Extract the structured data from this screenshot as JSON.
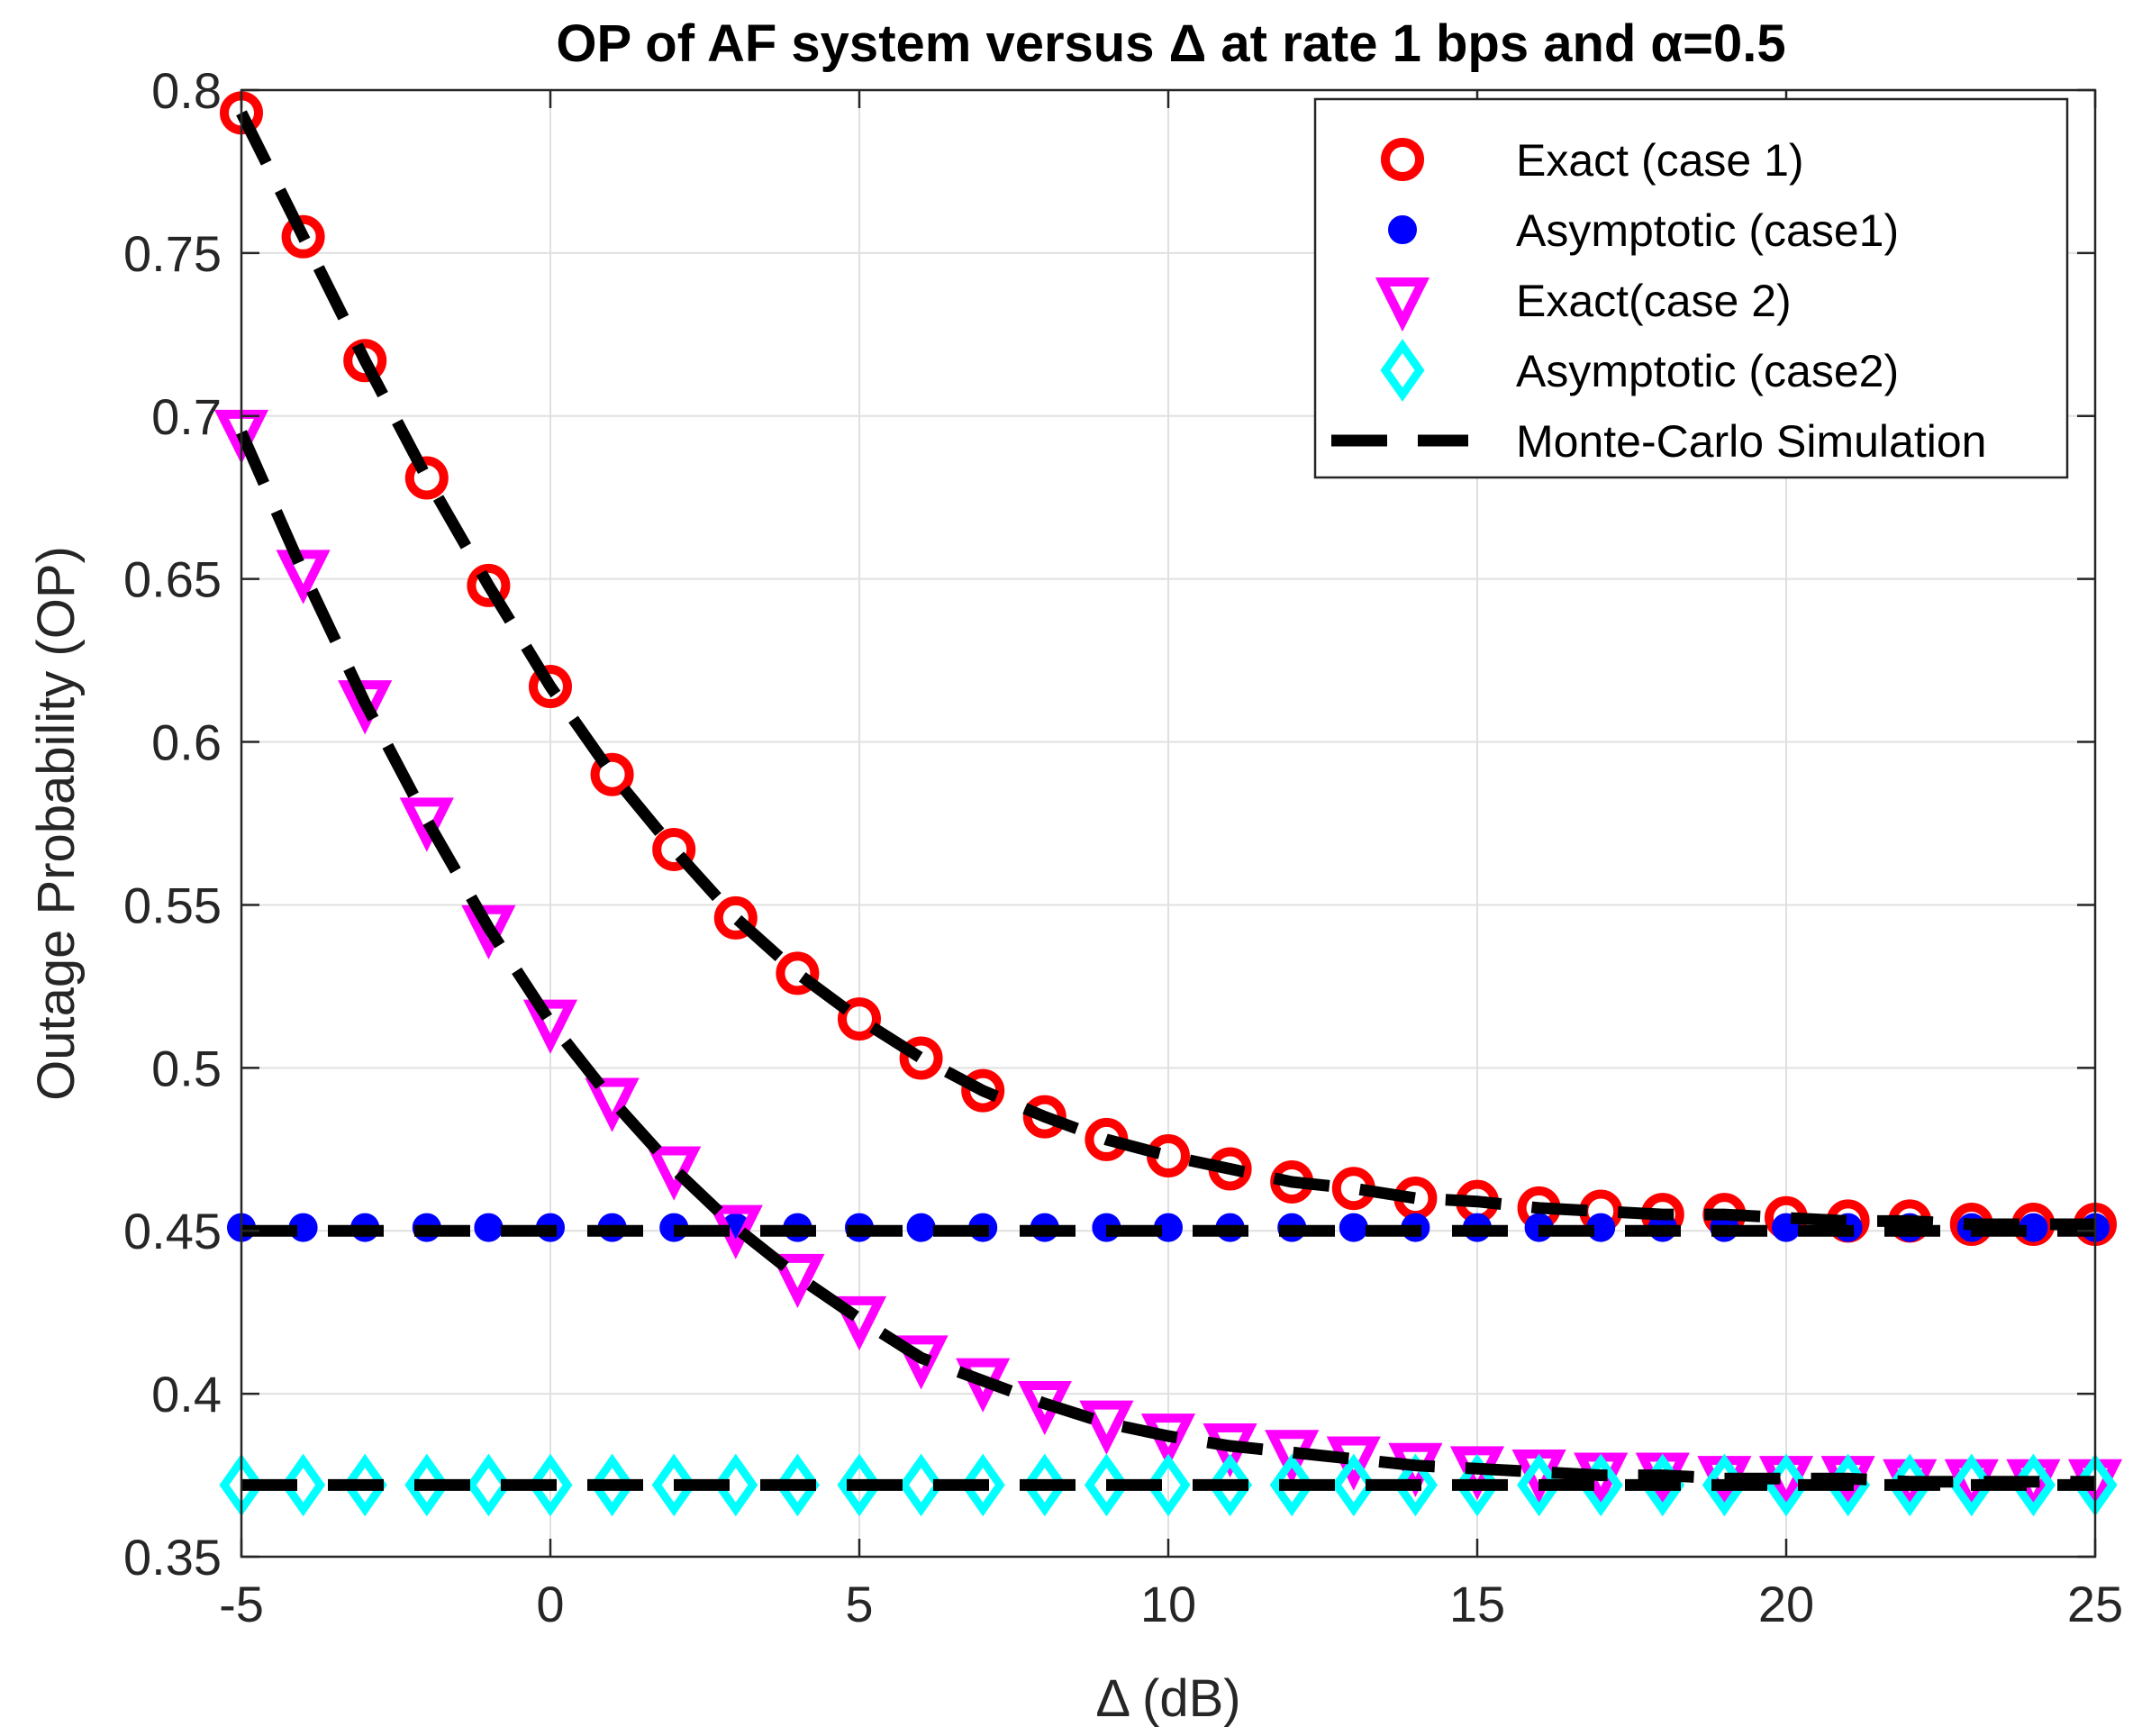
{
  "chart_data": {
    "type": "line",
    "title": "OP of AF system versus Δ at rate 1 bps and α=0.5",
    "xlabel": "Δ (dB)",
    "ylabel": "Outage Probability (OP)",
    "xlim": [
      -5,
      25
    ],
    "ylim": [
      0.35,
      0.8
    ],
    "xticks": [
      -5,
      0,
      5,
      10,
      15,
      20,
      25
    ],
    "xtick_labels": [
      "-5",
      "0",
      "5",
      "10",
      "15",
      "20",
      "25"
    ],
    "yticks": [
      0.35,
      0.4,
      0.45,
      0.5,
      0.55,
      0.6,
      0.65,
      0.7,
      0.75,
      0.8
    ],
    "ytick_labels": [
      "0.35",
      "0.4",
      "0.45",
      "0.5",
      "0.55",
      "0.6",
      "0.65",
      "0.7",
      "0.75",
      "0.8"
    ],
    "grid": true,
    "legend_position": "top-right",
    "x": [
      -5,
      -4,
      -3,
      -2,
      -1,
      0,
      1,
      2,
      3,
      4,
      5,
      6,
      7,
      8,
      9,
      10,
      11,
      12,
      13,
      14,
      15,
      16,
      17,
      18,
      19,
      20,
      21,
      22,
      23,
      24,
      25
    ],
    "series": [
      {
        "name": "Exact (case 1)",
        "marker": "circle-open",
        "color": "#ff0000",
        "values": [
          0.793,
          0.755,
          0.717,
          0.681,
          0.648,
          0.617,
          0.59,
          0.567,
          0.546,
          0.529,
          0.515,
          0.503,
          0.493,
          0.485,
          0.478,
          0.473,
          0.469,
          0.465,
          0.463,
          0.46,
          0.459,
          0.457,
          0.456,
          0.455,
          0.455,
          0.454,
          0.453,
          0.453,
          0.452,
          0.452,
          0.452
        ]
      },
      {
        "name": "Asymptotic (case1)",
        "marker": "dot",
        "color": "#0000ff",
        "values": [
          0.451,
          0.451,
          0.451,
          0.451,
          0.451,
          0.451,
          0.451,
          0.451,
          0.451,
          0.451,
          0.451,
          0.451,
          0.451,
          0.451,
          0.451,
          0.451,
          0.451,
          0.451,
          0.451,
          0.451,
          0.451,
          0.451,
          0.451,
          0.451,
          0.451,
          0.451,
          0.451,
          0.451,
          0.451,
          0.451,
          0.451
        ]
      },
      {
        "name": "Exact(case 2)",
        "marker": "triangle-down",
        "color": "#ff00ff",
        "values": [
          0.695,
          0.652,
          0.612,
          0.576,
          0.543,
          0.514,
          0.49,
          0.469,
          0.451,
          0.436,
          0.423,
          0.411,
          0.404,
          0.397,
          0.391,
          0.387,
          0.384,
          0.382,
          0.38,
          0.378,
          0.377,
          0.376,
          0.375,
          0.375,
          0.374,
          0.374,
          0.374,
          0.373,
          0.373,
          0.373,
          0.373
        ]
      },
      {
        "name": "Asymptotic (case2)",
        "marker": "diamond",
        "color": "#00ffff",
        "values": [
          0.372,
          0.372,
          0.372,
          0.372,
          0.372,
          0.372,
          0.372,
          0.372,
          0.372,
          0.372,
          0.372,
          0.372,
          0.372,
          0.372,
          0.372,
          0.372,
          0.372,
          0.372,
          0.372,
          0.372,
          0.372,
          0.372,
          0.372,
          0.372,
          0.372,
          0.372,
          0.372,
          0.372,
          0.372,
          0.372,
          0.372
        ]
      },
      {
        "name": "Monte-Carlo Simulation",
        "marker": "dashed-line",
        "color": "#000000",
        "lines": [
          [
            0.793,
            0.755,
            0.717,
            0.681,
            0.648,
            0.617,
            0.59,
            0.567,
            0.546,
            0.529,
            0.515,
            0.503,
            0.493,
            0.485,
            0.478,
            0.473,
            0.469,
            0.465,
            0.463,
            0.46,
            0.459,
            0.457,
            0.456,
            0.455,
            0.455,
            0.454,
            0.453,
            0.453,
            0.452,
            0.452,
            0.452
          ],
          [
            0.45,
            0.45,
            0.45,
            0.45,
            0.45,
            0.45,
            0.45,
            0.45,
            0.45,
            0.45,
            0.45,
            0.45,
            0.45,
            0.45,
            0.45,
            0.45,
            0.45,
            0.45,
            0.45,
            0.45,
            0.45,
            0.45,
            0.45,
            0.45,
            0.45,
            0.45,
            0.45,
            0.45,
            0.45,
            0.45,
            0.45
          ],
          [
            0.695,
            0.652,
            0.612,
            0.576,
            0.543,
            0.514,
            0.49,
            0.469,
            0.451,
            0.436,
            0.423,
            0.411,
            0.404,
            0.397,
            0.391,
            0.387,
            0.384,
            0.382,
            0.38,
            0.378,
            0.377,
            0.376,
            0.375,
            0.375,
            0.374,
            0.374,
            0.374,
            0.373,
            0.373,
            0.373,
            0.373
          ],
          [
            0.372,
            0.372,
            0.372,
            0.372,
            0.372,
            0.372,
            0.372,
            0.372,
            0.372,
            0.372,
            0.372,
            0.372,
            0.372,
            0.372,
            0.372,
            0.372,
            0.372,
            0.372,
            0.372,
            0.372,
            0.372,
            0.372,
            0.372,
            0.372,
            0.372,
            0.372,
            0.372,
            0.372,
            0.372,
            0.372,
            0.372
          ]
        ]
      }
    ]
  }
}
